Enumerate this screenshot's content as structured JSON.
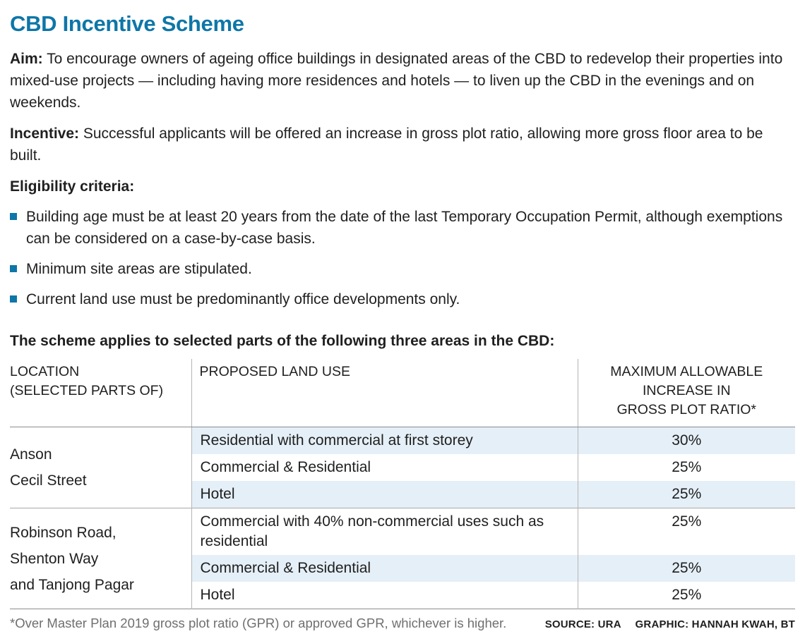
{
  "title": "CBD Incentive Scheme",
  "aim": {
    "label": "Aim:",
    "text": "To encourage owners of ageing office buildings in designated areas of the CBD to redevelop their properties into mixed-use projects — including having more residences and hotels — to liven up the CBD in the evenings and on weekends."
  },
  "incentive": {
    "label": "Incentive:",
    "text": "Successful applicants will be offered an increase in gross plot ratio, allowing more gross floor area to be built."
  },
  "eligibility": {
    "heading": "Eligibility criteria:",
    "bullets": [
      "Building age must be at least 20 years from the date of the last Temporary Occupation Permit, although exemptions can be considered on a case-by-case basis.",
      "Minimum site areas are stipulated.",
      "Current land use must be predominantly office developments only."
    ]
  },
  "table_intro": "The scheme applies to selected parts of the following three areas in the CBD:",
  "table": {
    "col_headers": {
      "location": "LOCATION\n(SELECTED PARTS OF)",
      "land_use": "PROPOSED LAND USE",
      "max_increase": "MAXIMUM ALLOWABLE\nINCREASE IN\nGROSS PLOT RATIO*"
    },
    "groups": [
      {
        "location": "Anson\nCecil Street",
        "rows": [
          {
            "land_use": "Residential with commercial at first storey",
            "increase": "30%"
          },
          {
            "land_use": "Commercial & Residential",
            "increase": "25%"
          },
          {
            "land_use": "Hotel",
            "increase": "25%"
          }
        ]
      },
      {
        "location": "Robinson Road,\nShenton Way\nand Tanjong Pagar",
        "rows": [
          {
            "land_use": "Commercial with 40% non-commercial uses such as residential",
            "increase": "25%"
          },
          {
            "land_use": "Commercial & Residential",
            "increase": "25%"
          },
          {
            "land_use": "Hotel",
            "increase": "25%"
          }
        ]
      }
    ]
  },
  "footnote": "*Over Master Plan 2019 gross plot ratio (GPR) or approved GPR, whichever is higher.",
  "credit": {
    "source": "SOURCE: URA",
    "graphic": "GRAPHIC: HANNAH KWAH, BT"
  },
  "colors": {
    "accent_teal": "#0e76a8",
    "row_shade": "#e5eff7"
  }
}
